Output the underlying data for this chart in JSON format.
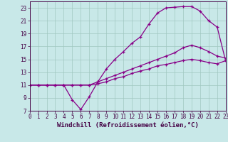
{
  "xlabel": "Windchill (Refroidissement éolien,°C)",
  "background_color": "#c8e8e8",
  "grid_color": "#a0c8c0",
  "line_color": "#880088",
  "marker": "+",
  "xlim": [
    0,
    23
  ],
  "ylim": [
    7,
    24
  ],
  "xticks": [
    0,
    1,
    2,
    3,
    4,
    5,
    6,
    7,
    8,
    9,
    10,
    11,
    12,
    13,
    14,
    15,
    16,
    17,
    18,
    19,
    20,
    21,
    22,
    23
  ],
  "yticks": [
    7,
    9,
    11,
    13,
    15,
    17,
    19,
    21,
    23
  ],
  "curve1_x": [
    0,
    1,
    2,
    3,
    4,
    5,
    6,
    7,
    8,
    9,
    10,
    11,
    12,
    13,
    14,
    15,
    16,
    17,
    18,
    19,
    20,
    21,
    22,
    23
  ],
  "curve1_y": [
    11,
    11,
    11,
    11,
    11,
    8.7,
    7.2,
    9.2,
    11.5,
    13.5,
    15,
    16.2,
    17.5,
    18.5,
    20.5,
    22.2,
    23,
    23.1,
    23.2,
    23.2,
    22.5,
    21,
    20,
    14.7
  ],
  "curve2_x": [
    0,
    1,
    2,
    3,
    4,
    5,
    6,
    7,
    8,
    9,
    10,
    11,
    12,
    13,
    14,
    15,
    16,
    17,
    18,
    19,
    20,
    21,
    22,
    23
  ],
  "curve2_y": [
    11,
    11,
    11,
    11,
    11,
    11,
    11,
    11,
    11.5,
    12,
    12.5,
    13,
    13.5,
    14,
    14.5,
    15,
    15.5,
    16,
    16.8,
    17.2,
    16.8,
    16.2,
    15.5,
    15.2
  ],
  "curve3_x": [
    0,
    1,
    2,
    3,
    4,
    5,
    6,
    7,
    8,
    9,
    10,
    11,
    12,
    13,
    14,
    15,
    16,
    17,
    18,
    19,
    20,
    21,
    22,
    23
  ],
  "curve3_y": [
    11,
    11,
    11,
    11,
    11,
    11,
    11,
    11,
    11.2,
    11.5,
    12,
    12.3,
    12.8,
    13.2,
    13.5,
    14,
    14.2,
    14.5,
    14.8,
    15,
    14.8,
    14.5,
    14.3,
    14.8
  ],
  "tick_fontsize": 5.5,
  "xlabel_fontsize": 6.5,
  "tick_color": "#440044",
  "spine_color": "#440044"
}
